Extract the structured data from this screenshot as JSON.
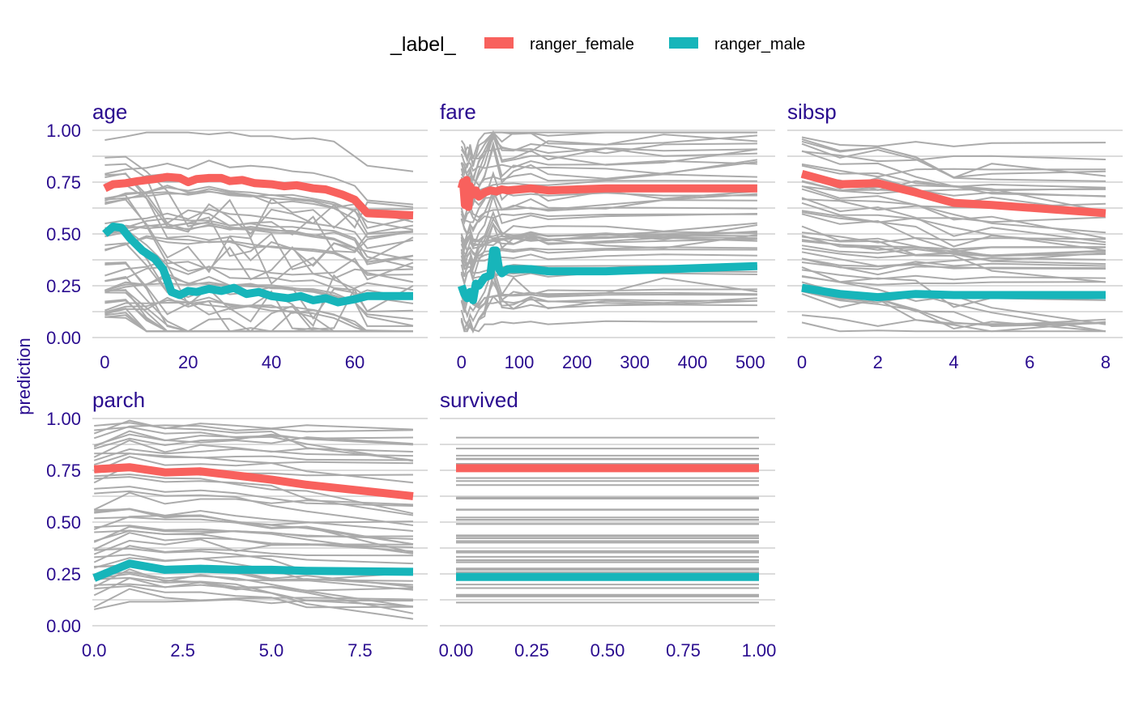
{
  "legend": {
    "title": "_label_",
    "items": [
      {
        "label": "ranger_female",
        "color": "#F8615D"
      },
      {
        "label": "ranger_male",
        "color": "#17B5BA"
      }
    ]
  },
  "colors": {
    "ice": "#ABABAB",
    "grid": "#DCDCDC",
    "text": "#2A0C8F"
  },
  "chart_data": {
    "type": "line",
    "ylabel": "prediction",
    "ylim": [
      0,
      1
    ],
    "yticks": [
      "0.00",
      "0.25",
      "0.50",
      "0.75",
      "1.00"
    ],
    "legend_position": "top",
    "grid": true,
    "panels": [
      {
        "title": "age",
        "xlim": [
          -3,
          74
        ],
        "xticks": [
          0,
          20,
          40,
          60
        ],
        "xtick_labels": [
          "0",
          "20",
          "40",
          "60"
        ],
        "ice_x": [
          0,
          5,
          10,
          15,
          20,
          25,
          30,
          35,
          40,
          45,
          50,
          55,
          60,
          63,
          74
        ],
        "ice_count": 45,
        "series": [
          {
            "name": "ranger_female",
            "x": [
              0,
              2,
              5,
              8,
              12,
              15,
              18,
              20,
              22,
              25,
              28,
              30,
              33,
              36,
              40,
              43,
              46,
              50,
              53,
              57,
              60,
              63,
              74
            ],
            "y": [
              0.72,
              0.74,
              0.745,
              0.755,
              0.765,
              0.775,
              0.77,
              0.75,
              0.765,
              0.77,
              0.77,
              0.755,
              0.76,
              0.745,
              0.74,
              0.73,
              0.735,
              0.72,
              0.715,
              0.69,
              0.665,
              0.6,
              0.59
            ]
          },
          {
            "name": "ranger_male",
            "x": [
              0,
              2,
              4,
              6,
              9,
              12,
              14,
              16,
              18,
              20,
              22,
              25,
              28,
              31,
              34,
              37,
              40,
              44,
              47,
              50,
              53,
              56,
              60,
              63,
              74
            ],
            "y": [
              0.5,
              0.535,
              0.53,
              0.48,
              0.42,
              0.38,
              0.33,
              0.22,
              0.205,
              0.225,
              0.22,
              0.235,
              0.225,
              0.24,
              0.21,
              0.22,
              0.2,
              0.19,
              0.2,
              0.18,
              0.19,
              0.17,
              0.185,
              0.2,
              0.2
            ]
          }
        ]
      },
      {
        "title": "fare",
        "xlim": [
          -15,
          515
        ],
        "xticks": [
          0,
          100,
          200,
          300,
          400,
          500
        ],
        "xtick_labels": [
          "0",
          "100",
          "200",
          "300",
          "400",
          "500"
        ],
        "ice_x": [
          0,
          5,
          10,
          15,
          20,
          30,
          40,
          55,
          70,
          90,
          120,
          150,
          250,
          350,
          512
        ],
        "ice_count": 45,
        "series": [
          {
            "name": "ranger_female",
            "x": [
              0,
              3,
              6,
              9,
              12,
              15,
              20,
              25,
              30,
              40,
              50,
              60,
              70,
              80,
              100,
              120,
              150,
              250,
              512
            ],
            "y": [
              0.72,
              0.75,
              0.64,
              0.76,
              0.63,
              0.73,
              0.69,
              0.71,
              0.68,
              0.7,
              0.71,
              0.705,
              0.715,
              0.71,
              0.715,
              0.72,
              0.71,
              0.72,
              0.72
            ]
          },
          {
            "name": "ranger_male",
            "x": [
              0,
              5,
              10,
              15,
              20,
              25,
              30,
              40,
              50,
              55,
              60,
              65,
              70,
              80,
              100,
              120,
              150,
              250,
              512
            ],
            "y": [
              0.25,
              0.21,
              0.19,
              0.22,
              0.18,
              0.26,
              0.25,
              0.29,
              0.3,
              0.42,
              0.42,
              0.33,
              0.31,
              0.33,
              0.33,
              0.33,
              0.32,
              0.32,
              0.345
            ]
          }
        ]
      },
      {
        "title": "sibsp",
        "xlim": [
          0,
          8
        ],
        "xticks": [
          0,
          2,
          4,
          6,
          8
        ],
        "xtick_labels": [
          "0",
          "2",
          "4",
          "6",
          "8"
        ],
        "ice_x": [
          0,
          1,
          2,
          3,
          4,
          5,
          8
        ],
        "ice_count": 45,
        "series": [
          {
            "name": "ranger_female",
            "x": [
              0,
              1,
              2,
              3,
              4,
              5,
              8
            ],
            "y": [
              0.79,
              0.74,
              0.745,
              0.7,
              0.65,
              0.64,
              0.6
            ]
          },
          {
            "name": "ranger_male",
            "x": [
              0,
              1,
              2,
              3,
              4,
              5,
              8
            ],
            "y": [
              0.24,
              0.21,
              0.195,
              0.21,
              0.205,
              0.205,
              0.205
            ]
          }
        ]
      },
      {
        "title": "parch",
        "xlim": [
          -0.05,
          9
        ],
        "xticks": [
          0,
          2.5,
          5,
          7.5
        ],
        "xtick_labels": [
          "0.0",
          "2.5",
          "5.0",
          "7.5"
        ],
        "ice_x": [
          0,
          1,
          2,
          3,
          4,
          5,
          6,
          9
        ],
        "ice_count": 45,
        "series": [
          {
            "name": "ranger_female",
            "x": [
              0,
              1,
              2,
              3,
              4,
              5,
              6,
              9
            ],
            "y": [
              0.755,
              0.765,
              0.74,
              0.745,
              0.725,
              0.705,
              0.68,
              0.625
            ]
          },
          {
            "name": "ranger_male",
            "x": [
              0,
              1,
              2,
              3,
              4,
              5,
              6,
              9
            ],
            "y": [
              0.23,
              0.3,
              0.27,
              0.275,
              0.27,
              0.27,
              0.265,
              0.26
            ]
          }
        ]
      },
      {
        "title": "survived",
        "xlim": [
          0,
          1
        ],
        "xticks": [
          0,
          0.25,
          0.5,
          0.75,
          1
        ],
        "xtick_labels": [
          "0.00",
          "0.25",
          "0.50",
          "0.75",
          "1.00"
        ],
        "ice_x": [
          0,
          1
        ],
        "ice_count": 45,
        "series": [
          {
            "name": "ranger_female",
            "x": [
              0,
              1
            ],
            "y": [
              0.76,
              0.76
            ]
          },
          {
            "name": "ranger_male",
            "x": [
              0,
              1
            ],
            "y": [
              0.235,
              0.235
            ]
          }
        ]
      }
    ]
  }
}
